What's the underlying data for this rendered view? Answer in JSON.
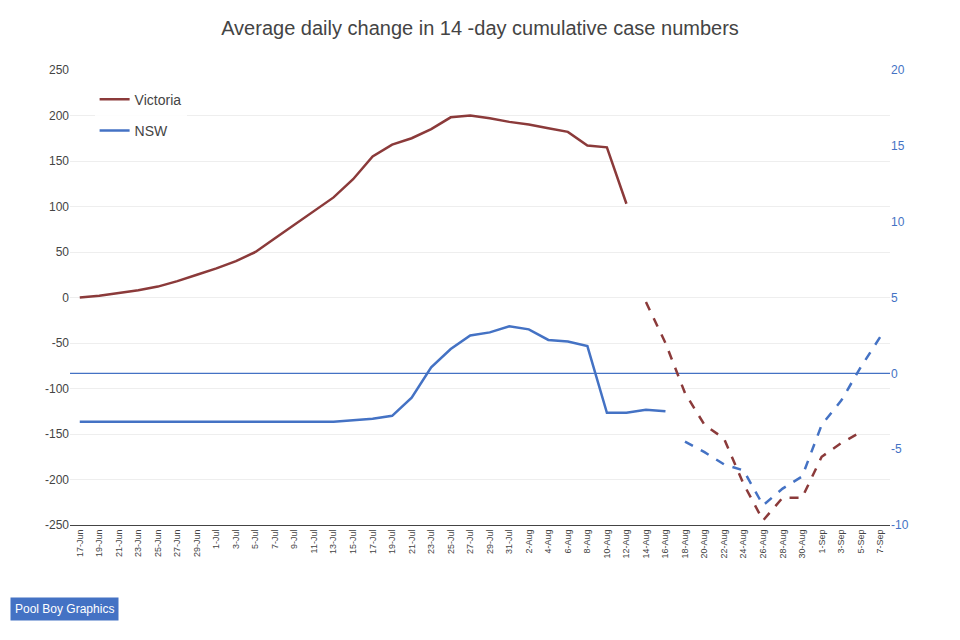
{
  "chart_data": {
    "type": "line",
    "title": "Average daily change in 14 -day cumulative case numbers",
    "categories": [
      "17-Jun",
      "19-Jun",
      "21-Jun",
      "23-Jun",
      "25-Jun",
      "27-Jun",
      "29-Jun",
      "1-Jul",
      "3-Jul",
      "5-Jul",
      "7-Jul",
      "9-Jul",
      "11-Jul",
      "13-Jul",
      "15-Jul",
      "17-Jul",
      "19-Jul",
      "21-Jul",
      "23-Jul",
      "25-Jul",
      "27-Jul",
      "29-Jul",
      "31-Jul",
      "2-Aug",
      "4-Aug",
      "6-Aug",
      "8-Aug",
      "10-Aug",
      "12-Aug",
      "14-Aug",
      "16-Aug",
      "18-Aug",
      "20-Aug",
      "22-Aug",
      "24-Aug",
      "26-Aug",
      "28-Aug",
      "30-Aug",
      "1-Sep",
      "3-Sep",
      "5-Sep",
      "7-Sep"
    ],
    "series": [
      {
        "name": "Victoria",
        "color": "#8B3A3A",
        "line_style": "solid",
        "values": [
          0,
          2,
          5,
          8,
          12,
          18,
          25,
          32,
          40,
          50,
          65,
          80,
          95,
          110,
          130,
          155,
          168,
          175,
          185,
          198,
          200,
          197,
          193,
          190,
          186,
          182,
          167,
          165,
          103,
          null,
          null,
          null,
          null,
          null,
          null,
          null,
          null,
          null,
          null,
          null,
          null,
          null
        ]
      },
      {
        "name": "Victoria",
        "color": "#8B3A3A",
        "line_style": "dashed",
        "values": [
          null,
          null,
          null,
          null,
          null,
          null,
          null,
          null,
          null,
          null,
          null,
          null,
          null,
          null,
          null,
          null,
          null,
          null,
          null,
          null,
          null,
          null,
          null,
          null,
          null,
          null,
          null,
          null,
          null,
          -5,
          -50,
          -105,
          -140,
          -155,
          -205,
          -245,
          -220,
          -220,
          -175,
          -160,
          -148,
          null
        ]
      },
      {
        "name": "NSW",
        "color": "#4472C4",
        "line_style": "solid",
        "axis": "y2",
        "values": [
          -3.2,
          -3.2,
          -3.2,
          -3.2,
          -3.2,
          -3.2,
          -3.2,
          -3.2,
          -3.2,
          -3.2,
          -3.2,
          -3.2,
          -3.2,
          -3.2,
          -3.1,
          -3.0,
          -2.8,
          -1.6,
          0.4,
          1.6,
          2.5,
          2.7,
          3.1,
          2.9,
          2.2,
          2.1,
          1.8,
          -2.6,
          -2.6,
          -2.4,
          -2.5,
          null,
          null,
          null,
          null,
          null,
          null,
          null,
          null,
          null,
          null,
          null
        ]
      },
      {
        "name": "NSW",
        "color": "#4472C4",
        "line_style": "dashed",
        "axis": "y2",
        "values": [
          null,
          null,
          null,
          null,
          null,
          null,
          null,
          null,
          null,
          null,
          null,
          null,
          null,
          null,
          null,
          null,
          null,
          null,
          null,
          null,
          null,
          null,
          null,
          null,
          null,
          null,
          null,
          null,
          null,
          null,
          null,
          -4.5,
          -5.2,
          -6.0,
          -6.4,
          -8.7,
          -7.6,
          -6.8,
          -3.4,
          -1.8,
          0.4,
          2.4
        ]
      }
    ],
    "ylim": [
      -250,
      250
    ],
    "yticks": [
      -250,
      -200,
      -150,
      -100,
      -50,
      0,
      50,
      100,
      150,
      200,
      250
    ],
    "y2lim": [
      -10,
      20
    ],
    "y2ticks": [
      -10,
      -5,
      0,
      5,
      10,
      15,
      20
    ],
    "reference_lines": [
      {
        "axis": "y",
        "value": 0,
        "color": "#8B3A3A"
      },
      {
        "axis": "y2",
        "value": 0,
        "color": "#4472C4"
      }
    ],
    "grid": true,
    "legend": "upper left",
    "annotations": [
      {
        "text": "Pool Boy Graphics",
        "color": "#4472C4"
      }
    ]
  }
}
